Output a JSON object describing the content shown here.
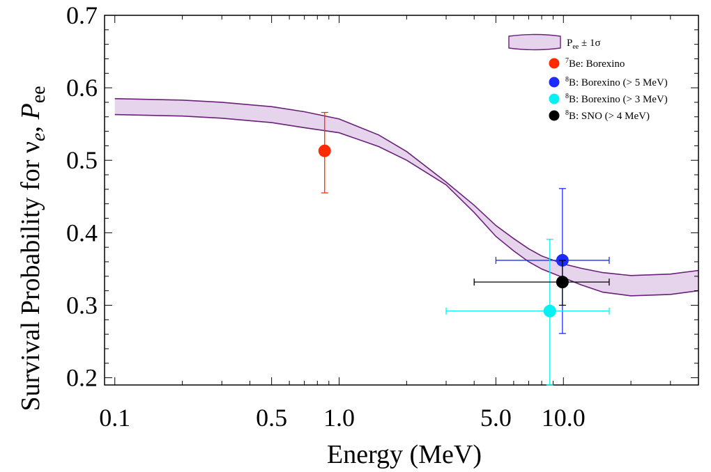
{
  "chart_data": {
    "type": "scatter",
    "xlabel": "Energy (MeV)",
    "ylabel_parts": [
      "Survival Probability for ν",
      "e",
      ", ",
      "P",
      "ee"
    ],
    "x_scale": "log",
    "xlim": [
      0.09,
      40
    ],
    "ylim": [
      0.19,
      0.7
    ],
    "x_ticks": [
      {
        "value": 0.1,
        "label": "0.1"
      },
      {
        "value": 0.5,
        "label": "0.5"
      },
      {
        "value": 1.0,
        "label": "1.0"
      },
      {
        "value": 5.0,
        "label": "5.0"
      },
      {
        "value": 10.0,
        "label": "10.0"
      }
    ],
    "y_ticks": [
      {
        "value": 0.2,
        "label": "0.2"
      },
      {
        "value": 0.3,
        "label": "0.3"
      },
      {
        "value": 0.4,
        "label": "0.4"
      },
      {
        "value": 0.5,
        "label": "0.5"
      },
      {
        "value": 0.6,
        "label": "0.6"
      },
      {
        "value": 0.7,
        "label": "0.7"
      }
    ],
    "band": {
      "color": "#e6d3ec",
      "edge_color": "#6a1f79",
      "legend_parts": [
        "P",
        "ee",
        " ± 1σ"
      ],
      "x": [
        0.1,
        0.2,
        0.3,
        0.5,
        0.7,
        1.0,
        1.5,
        2.0,
        3.0,
        4.0,
        5.0,
        6.0,
        7.0,
        8.0,
        10.0,
        12.0,
        15.0,
        20.0,
        30.0,
        40.0
      ],
      "upper": [
        0.585,
        0.583,
        0.58,
        0.574,
        0.567,
        0.557,
        0.535,
        0.512,
        0.47,
        0.438,
        0.41,
        0.392,
        0.378,
        0.368,
        0.357,
        0.351,
        0.345,
        0.341,
        0.343,
        0.348
      ],
      "lower": [
        0.563,
        0.561,
        0.558,
        0.552,
        0.545,
        0.538,
        0.519,
        0.5,
        0.466,
        0.428,
        0.395,
        0.375,
        0.36,
        0.35,
        0.338,
        0.328,
        0.318,
        0.313,
        0.315,
        0.32
      ]
    },
    "series": [
      {
        "name_sup": "7",
        "name_text": "Be: Borexino",
        "color": "#ff2a00",
        "points": [
          {
            "x": 0.862,
            "y": 0.513,
            "xlo": 0.862,
            "xhi": 0.862,
            "ylo": 0.455,
            "yhi": 0.566
          }
        ]
      },
      {
        "name_sup": "8",
        "name_text": "B: Borexino (> 5 MeV)",
        "color": "#1e2bff",
        "points": [
          {
            "x": 9.9,
            "y": 0.362,
            "xlo": 5.0,
            "xhi": 16.0,
            "ylo": 0.261,
            "yhi": 0.461
          }
        ]
      },
      {
        "name_sup": "8",
        "name_text": "B: Borexino (> 3 MeV)",
        "color": "#00f2f2",
        "points": [
          {
            "x": 8.7,
            "y": 0.292,
            "xlo": 3.0,
            "xhi": 16.0,
            "ylo": 0.19,
            "yhi": 0.391
          }
        ]
      },
      {
        "name_sup": "8",
        "name_text": "B: SNO (> 4 MeV)",
        "color": "#000000",
        "points": [
          {
            "x": 9.9,
            "y": 0.332,
            "xlo": 4.0,
            "xhi": 16.0,
            "ylo": 0.3,
            "yhi": 0.362
          }
        ]
      }
    ],
    "legend_position": "top-right",
    "grid": false
  }
}
